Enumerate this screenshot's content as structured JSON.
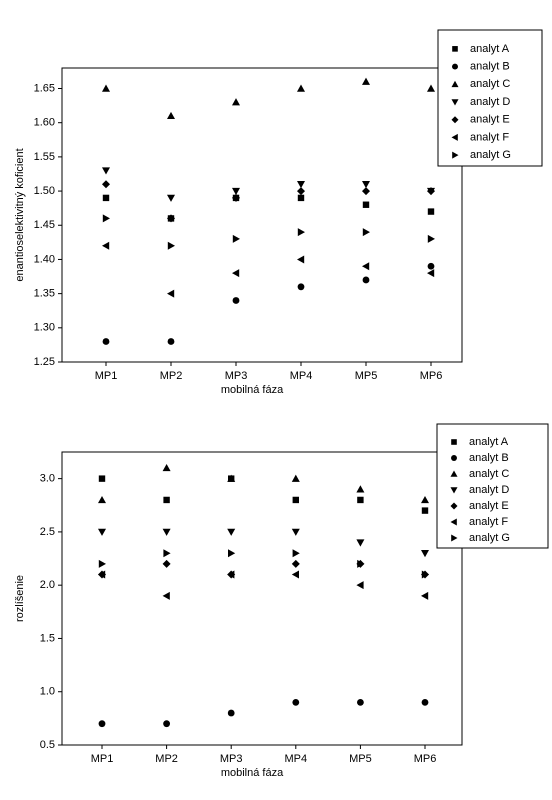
{
  "chart_data": [
    {
      "type": "scatter",
      "xlabel": "mobilná fáza",
      "ylabel": "enantioselektivitný koficient",
      "categories": [
        "MP1",
        "MP2",
        "MP3",
        "MP4",
        "MP5",
        "MP6"
      ],
      "ylim": [
        1.25,
        1.68
      ],
      "yticks": [
        1.25,
        {
          "value": 1.3,
          "label": "1.30"
        },
        1.35,
        {
          "value": 1.4,
          "label": "1.40"
        },
        1.45,
        {
          "value": 1.5,
          "label": "1.50"
        },
        1.55,
        {
          "value": 1.6,
          "label": "1.60"
        },
        1.65
      ],
      "legend": "upper-right",
      "series": [
        {
          "name": "analyt A",
          "marker": "square",
          "color": "#000000",
          "values": [
            1.49,
            1.46,
            1.49,
            1.49,
            1.48,
            1.47
          ]
        },
        {
          "name": "analyt B",
          "marker": "circle",
          "color": "#000000",
          "values": [
            1.28,
            1.28,
            1.34,
            1.36,
            1.37,
            1.39
          ]
        },
        {
          "name": "analyt C",
          "marker": "triangle-up",
          "color": "#000000",
          "values": [
            1.65,
            1.61,
            1.63,
            1.65,
            1.66,
            1.65
          ]
        },
        {
          "name": "analyt D",
          "marker": "triangle-down",
          "color": "#000000",
          "values": [
            1.53,
            1.49,
            1.5,
            1.51,
            1.51,
            1.5
          ]
        },
        {
          "name": "analyt E",
          "marker": "diamond",
          "color": "#000000",
          "values": [
            1.51,
            1.46,
            1.49,
            1.5,
            1.5,
            1.5
          ]
        },
        {
          "name": "analyt F",
          "marker": "triangle-left",
          "color": "#000000",
          "values": [
            1.42,
            1.35,
            1.38,
            1.4,
            1.39,
            1.38
          ]
        },
        {
          "name": "analyt G",
          "marker": "triangle-right",
          "color": "#000000",
          "values": [
            1.46,
            1.42,
            1.43,
            1.44,
            1.44,
            1.43
          ]
        }
      ]
    },
    {
      "type": "scatter",
      "xlabel": "mobilná fáza",
      "ylabel": "rozlíšenie",
      "categories": [
        "MP1",
        "MP2",
        "MP3",
        "MP4",
        "MP5",
        "MP6"
      ],
      "ylim": [
        0.5,
        3.25
      ],
      "yticks": [
        0.5,
        {
          "value": 1,
          "label": "1.0"
        },
        1.5,
        {
          "value": 2,
          "label": "2.0"
        },
        2.5,
        {
          "value": 3,
          "label": "3.0"
        }
      ],
      "legend": "upper-right",
      "series": [
        {
          "name": "analyt A",
          "marker": "square",
          "color": "#000000",
          "values": [
            3.0,
            2.8,
            3.0,
            2.8,
            2.8,
            2.7
          ]
        },
        {
          "name": "analyt B",
          "marker": "circle",
          "color": "#000000",
          "values": [
            0.7,
            0.7,
            0.8,
            0.9,
            0.9,
            0.9
          ]
        },
        {
          "name": "analyt C",
          "marker": "triangle-up",
          "color": "#000000",
          "values": [
            2.8,
            3.1,
            3.0,
            3.0,
            2.9,
            2.8
          ]
        },
        {
          "name": "analyt D",
          "marker": "triangle-down",
          "color": "#000000",
          "values": [
            2.5,
            2.5,
            2.5,
            2.5,
            2.4,
            2.3
          ]
        },
        {
          "name": "analyt E",
          "marker": "diamond",
          "color": "#000000",
          "values": [
            2.1,
            2.2,
            2.1,
            2.2,
            2.2,
            2.1
          ]
        },
        {
          "name": "analyt F",
          "marker": "triangle-left",
          "color": "#000000",
          "values": [
            2.1,
            1.9,
            2.1,
            2.1,
            2.0,
            1.9
          ]
        },
        {
          "name": "analyt G",
          "marker": "triangle-right",
          "color": "#000000",
          "values": [
            2.2,
            2.3,
            2.3,
            2.3,
            2.2,
            2.1
          ]
        }
      ]
    }
  ]
}
